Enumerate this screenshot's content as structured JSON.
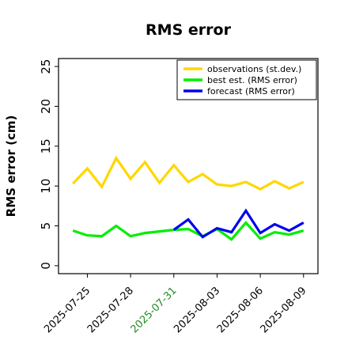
{
  "chart_data": {
    "type": "line",
    "title": "RMS error",
    "ylabel": "RMS error (cm)",
    "xlabel": "",
    "ylim": [
      -1,
      26
    ],
    "xlim": [
      "2025-07-23",
      "2025-08-10"
    ],
    "yticks": [
      "0",
      "5",
      "10",
      "15",
      "20",
      "25"
    ],
    "ytick_values": [
      0,
      5,
      10,
      15,
      20,
      25
    ],
    "xticks": [
      {
        "label": "2025-07-25",
        "date": "2025-07-25",
        "color": "#000000"
      },
      {
        "label": "2025-07-28",
        "date": "2025-07-28",
        "color": "#000000"
      },
      {
        "label": "2025-07-31",
        "date": "2025-07-31",
        "color": "#228B22"
      },
      {
        "label": "2025-08-03",
        "date": "2025-08-03",
        "color": "#000000"
      },
      {
        "label": "2025-08-06",
        "date": "2025-08-06",
        "color": "#000000"
      },
      {
        "label": "2025-08-09",
        "date": "2025-08-09",
        "color": "#000000"
      }
    ],
    "grid": false,
    "legend_position": "top-right",
    "series": [
      {
        "name": "observations (st.dev.)",
        "color": "#FFD700",
        "x": [
          "2025-07-24",
          "2025-07-25",
          "2025-07-26",
          "2025-07-27",
          "2025-07-28",
          "2025-07-29",
          "2025-07-30",
          "2025-07-31",
          "2025-08-01",
          "2025-08-02",
          "2025-08-03",
          "2025-08-04",
          "2025-08-05",
          "2025-08-06",
          "2025-08-07",
          "2025-08-08",
          "2025-08-09"
        ],
        "values": [
          10.3,
          12.2,
          9.9,
          13.5,
          10.9,
          13.0,
          10.4,
          12.6,
          10.5,
          11.5,
          10.2,
          10.0,
          10.5,
          9.6,
          10.6,
          9.7,
          10.5
        ]
      },
      {
        "name": "best est. (RMS error)",
        "color": "#00EE00",
        "x": [
          "2025-07-24",
          "2025-07-25",
          "2025-07-26",
          "2025-07-27",
          "2025-07-28",
          "2025-07-29",
          "2025-07-30",
          "2025-07-31",
          "2025-08-01",
          "2025-08-02",
          "2025-08-03",
          "2025-08-04",
          "2025-08-05",
          "2025-08-06",
          "2025-08-07",
          "2025-08-08",
          "2025-08-09"
        ],
        "values": [
          4.4,
          3.8,
          3.7,
          5.0,
          3.7,
          4.1,
          4.3,
          4.5,
          4.6,
          3.7,
          4.6,
          3.3,
          5.4,
          3.4,
          4.2,
          3.9,
          4.4
        ]
      },
      {
        "name": "forecast (RMS error)",
        "color": "#0000EE",
        "x": [
          "2025-07-31",
          "2025-08-01",
          "2025-08-02",
          "2025-08-03",
          "2025-08-04",
          "2025-08-05",
          "2025-08-06",
          "2025-08-07",
          "2025-08-08",
          "2025-08-09"
        ],
        "values": [
          4.5,
          5.8,
          3.6,
          4.7,
          4.2,
          6.9,
          4.1,
          5.2,
          4.4,
          5.4
        ]
      }
    ]
  }
}
